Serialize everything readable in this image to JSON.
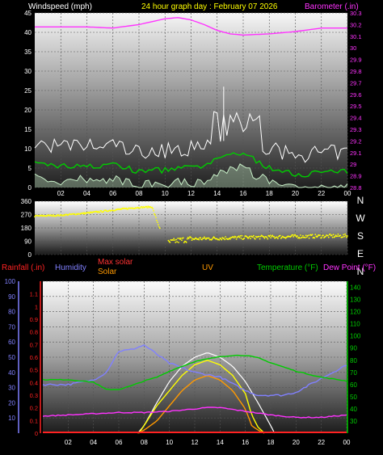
{
  "header": {
    "left_label": "Windspeed (mph)",
    "title": "24 hour graph day : February 07 2026",
    "right_label": "Barometer (.in)"
  },
  "colors": {
    "wind_avg": "#ffffff",
    "wind_gust": "#00cc00",
    "wind_light": "#c8f0c8",
    "barometer": "#ff33ff",
    "direction": "#ffff00",
    "rain": "#ff2222",
    "humidity": "#8080ff",
    "solar": "#ff9900",
    "max_solar": "#ffffff",
    "uv": "#ffff00",
    "temperature": "#00cc00",
    "dew_point": "#ff33ff",
    "yellow_text": "#ffff00"
  },
  "chart_data": [
    {
      "type": "line",
      "title": "24 hour graph day : February 07 2026",
      "x_ticks": [
        "02",
        "04",
        "06",
        "08",
        "10",
        "12",
        "14",
        "16",
        "18",
        "20",
        "22",
        "00"
      ],
      "ylabel_left": "Windspeed (mph)",
      "ylim_left": [
        0,
        45
      ],
      "yticks_left": [
        0,
        5,
        10,
        15,
        20,
        25,
        30,
        35,
        40,
        45
      ],
      "ylabel_right": "Barometer (.in)",
      "ylim_right": [
        28.8,
        30.3
      ],
      "yticks_right": [
        "28.8",
        "28.9",
        "29",
        "29.1",
        "29.2",
        "29.3",
        "29.4",
        "29.5",
        "29.6",
        "29.7",
        "29.8",
        "29.9",
        "30",
        "30.1",
        "30.2",
        "30.3"
      ],
      "series": [
        {
          "name": "Windspeed (mph)",
          "role": "wind_avg",
          "hours": [
            0,
            1,
            2,
            3,
            4,
            5,
            6,
            7,
            8,
            9,
            10,
            11,
            12,
            13,
            14,
            15,
            16,
            17,
            18,
            19,
            20,
            21,
            22,
            23,
            24
          ],
          "values": [
            6,
            6,
            5.5,
            5.5,
            6,
            5,
            6.5,
            5,
            4,
            4.5,
            4.5,
            5,
            5,
            5.5,
            7,
            9,
            8.5,
            7,
            5,
            4,
            3.5,
            3.5,
            4,
            4,
            4
          ]
        },
        {
          "name": "Barometer (.in)",
          "role": "barometer",
          "hours": [
            0,
            2,
            4,
            6,
            8,
            10,
            11,
            12,
            13,
            14,
            15,
            16,
            18,
            20,
            22,
            24
          ],
          "values": [
            30.18,
            30.18,
            30.18,
            30.17,
            30.2,
            30.25,
            30.26,
            30.24,
            30.2,
            30.15,
            30.12,
            30.11,
            30.12,
            30.14,
            30.17,
            30.17
          ]
        }
      ]
    },
    {
      "type": "scatter",
      "ylim": [
        0,
        360
      ],
      "yticks": [
        0,
        90,
        180,
        270,
        360
      ],
      "compass": [
        "N",
        "W",
        "S",
        "E",
        "N"
      ],
      "series": [
        {
          "name": "Wind direction",
          "hours": [
            0,
            2,
            4,
            6,
            7,
            8,
            9,
            10,
            11,
            12,
            14,
            16,
            18,
            20,
            22,
            24
          ],
          "values": [
            260,
            265,
            280,
            300,
            310,
            318,
            322,
            75,
            95,
            105,
            110,
            115,
            118,
            122,
            124,
            126
          ]
        }
      ]
    },
    {
      "type": "line",
      "legend": [
        "Rainfall (.in)",
        "Humidity",
        "Max solar",
        "Solar",
        "UV",
        "Temperature (°F)",
        "Dew Point (°F)"
      ],
      "ylim_rain": [
        0,
        1.2
      ],
      "yticks_rain": [
        "0",
        "0.1",
        "0.2",
        "0.3",
        "0.4",
        "0.5",
        "0.6",
        "0.7",
        "0.8",
        "0.9",
        "1",
        "1.1"
      ],
      "ylim_humidity": [
        0,
        100
      ],
      "yticks_humidity": [
        10,
        20,
        30,
        40,
        50,
        60,
        70,
        80,
        90,
        100
      ],
      "ylim_temp": [
        20,
        145
      ],
      "yticks_temp": [
        30,
        40,
        50,
        60,
        70,
        80,
        90,
        100,
        110,
        120,
        130,
        140
      ],
      "series": [
        {
          "name": "Humidity",
          "hours": [
            0,
            2,
            4,
            5,
            6,
            7,
            8,
            9,
            10,
            12,
            14,
            16,
            17,
            18,
            19,
            20,
            22,
            24
          ],
          "values": [
            32,
            32,
            35,
            40,
            54,
            55,
            58,
            52,
            46,
            40,
            37,
            28,
            25,
            25,
            25,
            27,
            36,
            45
          ]
        },
        {
          "name": "Temperature (°F)",
          "hours": [
            0,
            2,
            4,
            5,
            6,
            7,
            8,
            9,
            10,
            11,
            12,
            14,
            15,
            16,
            17,
            18,
            20,
            22,
            24
          ],
          "values": [
            64,
            64,
            62,
            56,
            56,
            59,
            63,
            66,
            71,
            75,
            79,
            83,
            84,
            84,
            82,
            78,
            71,
            66,
            63
          ]
        },
        {
          "name": "Dew Point (°F)",
          "hours": [
            0,
            2,
            4,
            6,
            8,
            10,
            12,
            13,
            14,
            16,
            18,
            20,
            22,
            24
          ],
          "values": [
            34,
            35,
            36,
            37,
            37,
            38,
            40,
            41,
            41,
            38,
            35,
            33,
            33,
            35
          ]
        },
        {
          "name": "Solar",
          "hours": [
            7.5,
            8,
            9,
            10,
            11,
            12,
            13,
            14,
            15,
            16,
            16.5,
            17,
            17.5
          ],
          "values": [
            0,
            2,
            8,
            18,
            28,
            35,
            38,
            35,
            28,
            16,
            5,
            2,
            0
          ]
        },
        {
          "name": "Max solar",
          "hours": [
            7.5,
            8,
            9,
            10,
            11,
            12,
            13,
            14,
            15,
            16,
            17,
            18,
            18.3
          ],
          "values": [
            0,
            5,
            20,
            34,
            44,
            50,
            53,
            50,
            44,
            34,
            20,
            5,
            0
          ]
        },
        {
          "name": "UV",
          "hours": [
            7.6,
            8,
            9,
            10,
            11,
            12,
            13,
            14,
            15,
            16,
            16.5,
            17,
            17.5
          ],
          "values": [
            0,
            5,
            18,
            28,
            38,
            45,
            48,
            45,
            38,
            26,
            12,
            4,
            0
          ]
        },
        {
          "name": "Rainfall (.in)",
          "hours": [
            0,
            24
          ],
          "values": [
            0,
            0
          ]
        }
      ]
    }
  ]
}
